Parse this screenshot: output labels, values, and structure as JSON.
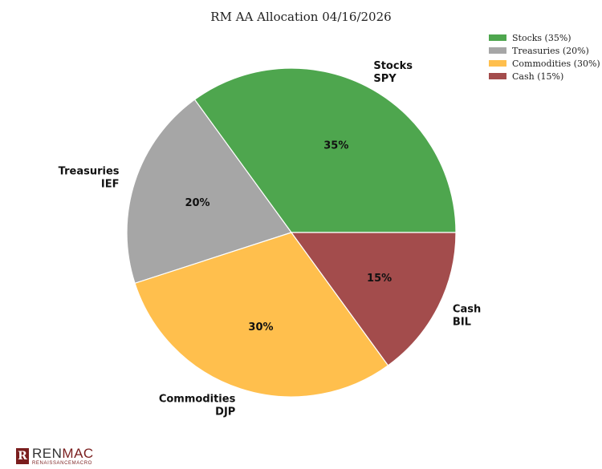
{
  "chart_data": {
    "type": "pie",
    "title": "RM AA Allocation 04/16/2026",
    "legend_position": "top-right",
    "slices": [
      {
        "legend": "Stocks (35%)",
        "label_line1": "Stocks",
        "label_line2": "SPY",
        "pct_label": "35%",
        "value": 35,
        "color": "#4ea64e"
      },
      {
        "legend": "Treasuries (20%)",
        "label_line1": "Treasuries",
        "label_line2": "IEF",
        "pct_label": "20%",
        "value": 20,
        "color": "#a6a6a6"
      },
      {
        "legend": "Commodities (30%)",
        "label_line1": "Commodities",
        "label_line2": "DJP",
        "pct_label": "30%",
        "value": 30,
        "color": "#ffbf4d"
      },
      {
        "legend": "Cash (15%)",
        "label_line1": "Cash",
        "label_line2": "BIL",
        "pct_label": "15%",
        "value": 15,
        "color": "#a34c4c"
      }
    ]
  },
  "logo": {
    "mark": "R",
    "name_part1": "REN",
    "name_part2": "MAC",
    "subtitle": "RENAISSANCEMACRO"
  }
}
